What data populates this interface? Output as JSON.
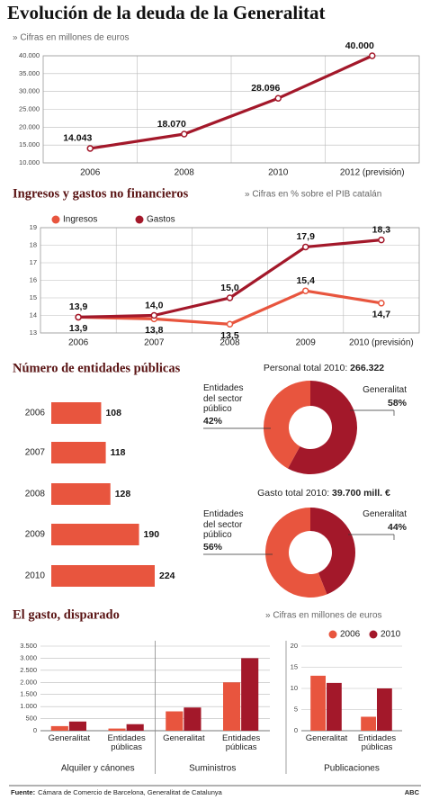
{
  "chart_data": [
    {
      "type": "line",
      "title": "Evolución de la deuda de la Generalitat",
      "subtitle": "» Cifras en millones de euros",
      "categories": [
        "2006",
        "2008",
        "2010",
        "2012 (previsión)"
      ],
      "values": [
        14043,
        18070,
        28096,
        40000
      ],
      "value_labels": [
        "14.043",
        "18.070",
        "28.096",
        "40.000"
      ],
      "color": "#a3182a",
      "ylim": [
        10000,
        40000
      ],
      "yticks": [
        {
          "value": 10000,
          "label": "10.000"
        },
        {
          "value": 15000,
          "label": "15.000"
        },
        {
          "value": 20000,
          "label": "20.000"
        },
        {
          "value": 25000,
          "label": "25.000"
        },
        {
          "value": 30000,
          "label": "30.000"
        },
        {
          "value": 35000,
          "label": "35.000"
        },
        {
          "value": 40000,
          "label": "40.000"
        }
      ],
      "grid": true
    },
    {
      "type": "line",
      "title": "Ingresos y gastos no financieros",
      "subtitle": "» Cifras en % sobre el PIB catalán",
      "categories": [
        "2006",
        "2007",
        "2008",
        "2009",
        "2010 (previsión)"
      ],
      "series": [
        {
          "name": "Ingresos",
          "color": "#e8553e",
          "values": [
            13.9,
            13.8,
            13.5,
            15.4,
            14.7
          ],
          "value_labels": [
            "13,9",
            "13,8",
            "13,5",
            "15,4",
            "14,7"
          ]
        },
        {
          "name": "Gastos",
          "color": "#a3182a",
          "values": [
            13.9,
            14.0,
            15.0,
            17.9,
            18.3
          ],
          "value_labels": [
            "13,9",
            "14,0",
            "15,0",
            "17,9",
            "18,3"
          ]
        }
      ],
      "ylim": [
        13,
        19
      ],
      "yticks": [
        13,
        14,
        15,
        16,
        17,
        18,
        19
      ],
      "grid": true
    },
    {
      "type": "hbar",
      "title": "Número de entidades públicas",
      "categories": [
        "2006",
        "2007",
        "2008",
        "2009",
        "2010"
      ],
      "values": [
        108,
        118,
        128,
        190,
        224
      ],
      "color": "#e8553e"
    },
    {
      "type": "pie",
      "title": "Personal total 2010:",
      "total_label": "266.322",
      "categories": [
        "Entidades del sector público",
        "Generalitat"
      ],
      "values": [
        42,
        58
      ],
      "value_labels": [
        "42%",
        "58%"
      ],
      "colors": [
        "#e8553e",
        "#a3182a"
      ]
    },
    {
      "type": "pie",
      "title": "Gasto total 2010:",
      "total_label": "39.700 mill. €",
      "categories": [
        "Entidades del sector público",
        "Generalitat"
      ],
      "values": [
        56,
        44
      ],
      "value_labels": [
        "56%",
        "44%"
      ],
      "colors": [
        "#e8553e",
        "#a3182a"
      ]
    },
    {
      "type": "bar",
      "title": "El gasto, disparado",
      "subtitle": "» Cifras en millones de euros",
      "groups": [
        "Alquiler y cánones",
        "Suministros"
      ],
      "categories": [
        "Generalitat",
        "Entidades públicas",
        "Generalitat",
        "Entidades públicas"
      ],
      "series": [
        {
          "name": "2006",
          "color": "#e8553e",
          "values": [
            190,
            90,
            800,
            2000
          ]
        },
        {
          "name": "2010",
          "color": "#a3182a",
          "values": [
            380,
            270,
            960,
            3000
          ]
        }
      ],
      "ylim": [
        0,
        3500
      ],
      "yticks": [
        0,
        500,
        {
          "value": 1000,
          "label": "1.000"
        },
        {
          "value": 1500,
          "label": "1.500"
        },
        {
          "value": 2000,
          "label": "2.000"
        },
        {
          "value": 2500,
          "label": "2.500"
        },
        {
          "value": 3000,
          "label": "3.000"
        },
        {
          "value": 3500,
          "label": "3.500"
        }
      ],
      "grid": true
    },
    {
      "type": "bar",
      "groups": [
        "Publicaciones"
      ],
      "categories": [
        "Generalitat",
        "Entidades públicas"
      ],
      "series": [
        {
          "color": "#e8553e",
          "values": [
            13,
            3.3
          ]
        },
        {
          "color": "#a3182a",
          "values": [
            11.3,
            10
          ]
        }
      ],
      "ylim": [
        0,
        20
      ],
      "yticks": [
        0,
        5,
        10,
        15,
        20
      ],
      "grid": true
    }
  ],
  "footer": {
    "source_label": "Fuente:",
    "source": "Cámara de Comercio de Barcelona, Generalitat de Catalunya",
    "brand": "ABC"
  }
}
